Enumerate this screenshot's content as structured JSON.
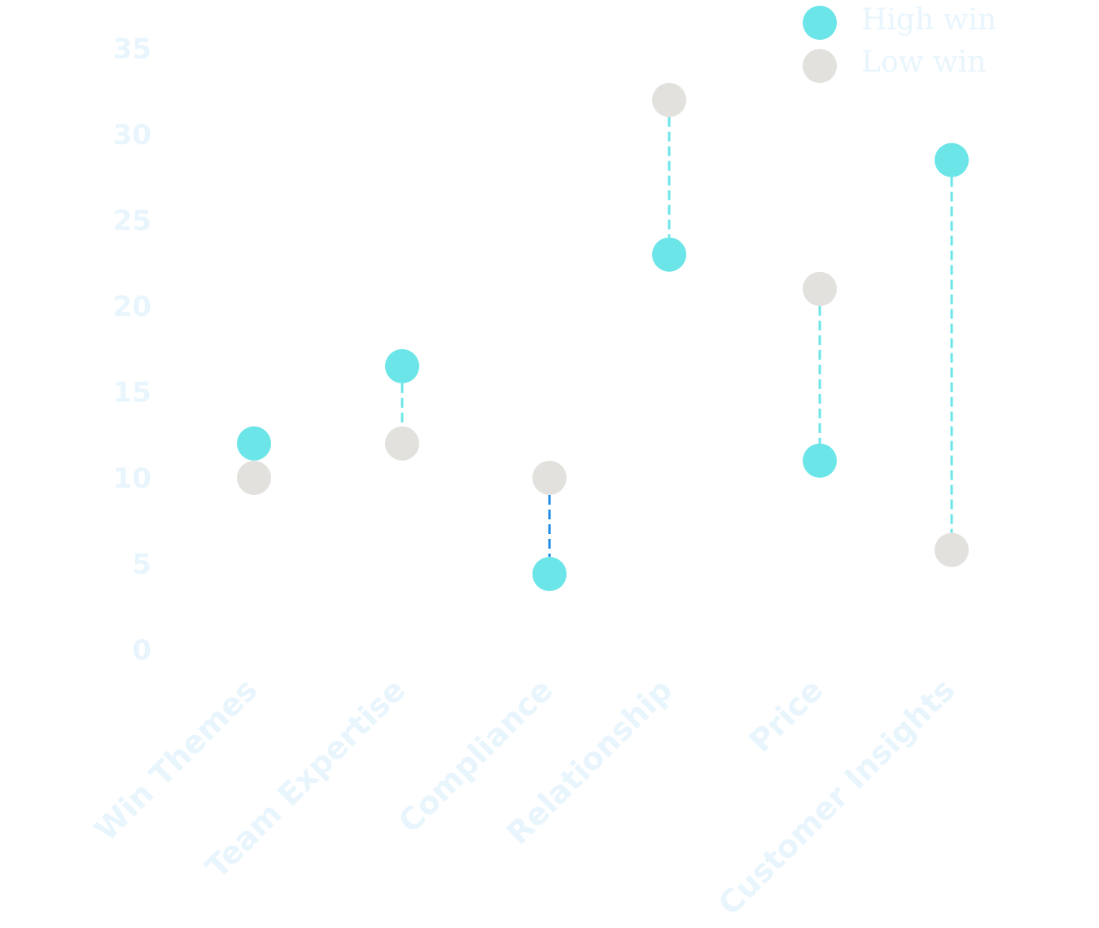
{
  "chart_data": {
    "type": "dumbbell",
    "categories": [
      "Win Themes",
      "Team Expertise",
      "Compliance",
      "Relationship",
      "Price",
      "Customer Insights"
    ],
    "series": [
      {
        "name": "High win",
        "values": [
          12,
          16.5,
          4.4,
          23,
          11,
          28.5
        ]
      },
      {
        "name": "Low win",
        "values": [
          10,
          12,
          10,
          32,
          21,
          5.8
        ]
      }
    ],
    "ylim": [
      0,
      35
    ],
    "yticks": [
      0,
      5,
      10,
      15,
      20,
      25,
      30,
      35
    ],
    "grid": false,
    "legend_position": "top-right",
    "colors": {
      "high": "#6ce5e8",
      "low": "#e2e1de",
      "connector": "#6ce5e8",
      "connector_highlight": "#1e88e5",
      "text": "#e8f5fd"
    },
    "highlighted_connector": "Compliance"
  }
}
